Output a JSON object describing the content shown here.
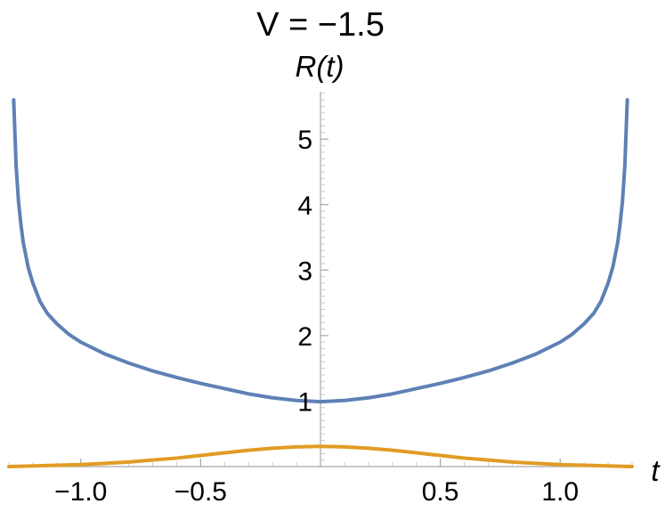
{
  "chart_data": {
    "type": "line",
    "title": "V = −1.5",
    "xlabel": "t",
    "ylabel": "R(t)",
    "xlim": [
      -1.3,
      1.3
    ],
    "ylim": [
      0,
      5.9
    ],
    "x_ticks": [
      -1.0,
      -0.5,
      0.5,
      1.0
    ],
    "x_tick_labels": [
      "−1.0",
      "−0.5",
      "0.5",
      "1.0"
    ],
    "y_ticks": [
      1,
      2,
      3,
      4,
      5
    ],
    "y_tick_labels": [
      "1",
      "2",
      "3",
      "4",
      "5"
    ],
    "grid": false,
    "legend": "none",
    "series": [
      {
        "color": "#5e81b5",
        "x": [
          -1.28,
          -1.27,
          -1.26,
          -1.25,
          -1.24,
          -1.22,
          -1.2,
          -1.17,
          -1.14,
          -1.1,
          -1.05,
          -1.0,
          -0.9,
          -0.8,
          -0.7,
          -0.6,
          -0.5,
          -0.4,
          -0.3,
          -0.2,
          -0.1,
          0.0,
          0.1,
          0.2,
          0.3,
          0.4,
          0.5,
          0.6,
          0.7,
          0.8,
          0.9,
          1.0,
          1.05,
          1.1,
          1.14,
          1.17,
          1.2,
          1.22,
          1.24,
          1.25,
          1.26,
          1.27,
          1.28
        ],
        "y": [
          5.6,
          4.6,
          4.05,
          3.7,
          3.42,
          3.05,
          2.8,
          2.52,
          2.34,
          2.18,
          2.02,
          1.9,
          1.72,
          1.58,
          1.46,
          1.36,
          1.27,
          1.19,
          1.11,
          1.05,
          1.01,
          0.99,
          1.01,
          1.05,
          1.11,
          1.19,
          1.27,
          1.36,
          1.46,
          1.58,
          1.72,
          1.9,
          2.02,
          2.18,
          2.34,
          2.52,
          2.8,
          3.05,
          3.42,
          3.7,
          4.05,
          4.6,
          5.6
        ]
      },
      {
        "color": "#e19c24",
        "x": [
          -1.3,
          -1.2,
          -1.1,
          -1.0,
          -0.9,
          -0.8,
          -0.7,
          -0.6,
          -0.5,
          -0.4,
          -0.3,
          -0.2,
          -0.1,
          0.0,
          0.1,
          0.2,
          0.3,
          0.4,
          0.5,
          0.6,
          0.7,
          0.8,
          0.9,
          1.0,
          1.1,
          1.2,
          1.3
        ],
        "y": [
          0.0,
          0.01,
          0.02,
          0.03,
          0.05,
          0.07,
          0.1,
          0.13,
          0.17,
          0.21,
          0.25,
          0.28,
          0.3,
          0.31,
          0.3,
          0.28,
          0.25,
          0.21,
          0.17,
          0.13,
          0.1,
          0.07,
          0.05,
          0.03,
          0.02,
          0.01,
          0.0
        ]
      }
    ]
  }
}
